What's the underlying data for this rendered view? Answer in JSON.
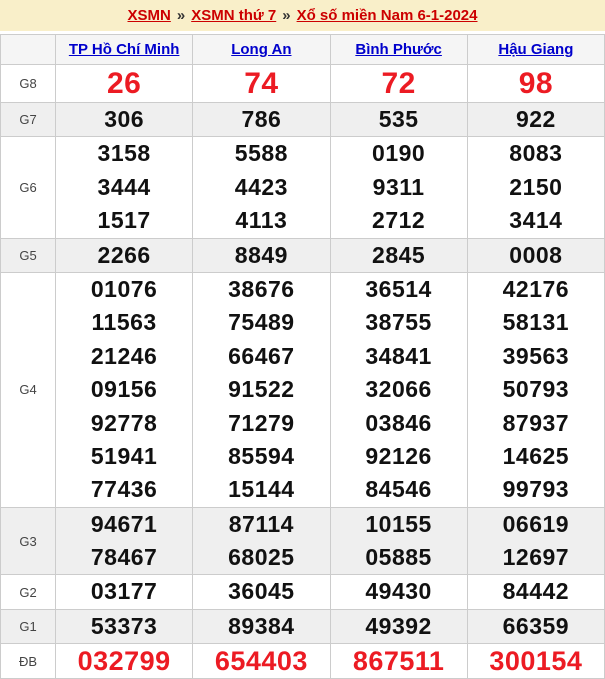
{
  "breadcrumb": {
    "separator": "»",
    "links": [
      {
        "label": "XSMN"
      },
      {
        "label": "XSMN thứ 7"
      },
      {
        "label": "Xổ số miền Nam 6-1-2024"
      }
    ]
  },
  "table": {
    "columns": [
      "TP Hồ Chí Minh",
      "Long An",
      "Bình Phước",
      "Hậu Giang"
    ],
    "rows": [
      {
        "label": "G8",
        "lines": [
          [
            "26",
            "74",
            "72",
            "98"
          ]
        ]
      },
      {
        "label": "G7",
        "lines": [
          [
            "306",
            "786",
            "535",
            "922"
          ]
        ]
      },
      {
        "label": "G6",
        "lines": [
          [
            "3158",
            "5588",
            "0190",
            "8083"
          ],
          [
            "3444",
            "4423",
            "9311",
            "2150"
          ],
          [
            "1517",
            "4113",
            "2712",
            "3414"
          ]
        ]
      },
      {
        "label": "G5",
        "lines": [
          [
            "2266",
            "8849",
            "2845",
            "0008"
          ]
        ]
      },
      {
        "label": "G4",
        "lines": [
          [
            "01076",
            "38676",
            "36514",
            "42176"
          ],
          [
            "11563",
            "75489",
            "38755",
            "58131"
          ],
          [
            "21246",
            "66467",
            "34841",
            "39563"
          ],
          [
            "09156",
            "91522",
            "32066",
            "50793"
          ],
          [
            "92778",
            "71279",
            "03846",
            "87937"
          ],
          [
            "51941",
            "85594",
            "92126",
            "14625"
          ],
          [
            "77436",
            "15144",
            "84546",
            "99793"
          ]
        ]
      },
      {
        "label": "G3",
        "lines": [
          [
            "94671",
            "87114",
            "10155",
            "06619"
          ],
          [
            "78467",
            "68025",
            "05885",
            "12697"
          ]
        ]
      },
      {
        "label": "G2",
        "lines": [
          [
            "03177",
            "36045",
            "49430",
            "84442"
          ]
        ]
      },
      {
        "label": "G1",
        "lines": [
          [
            "53373",
            "89384",
            "49392",
            "66359"
          ]
        ]
      },
      {
        "label": "ĐB",
        "lines": [
          [
            "032799",
            "654403",
            "867511",
            "300154"
          ]
        ]
      }
    ]
  },
  "colors": {
    "banner_bg": "#f9efc9",
    "banner_link": "#cc0000",
    "header_bg": "#f5f5f5",
    "header_link": "#0000cc",
    "shaded_row": "#efefef",
    "border": "#cccccc",
    "highlight_number": "#ec1b23",
    "number": "#111111"
  }
}
